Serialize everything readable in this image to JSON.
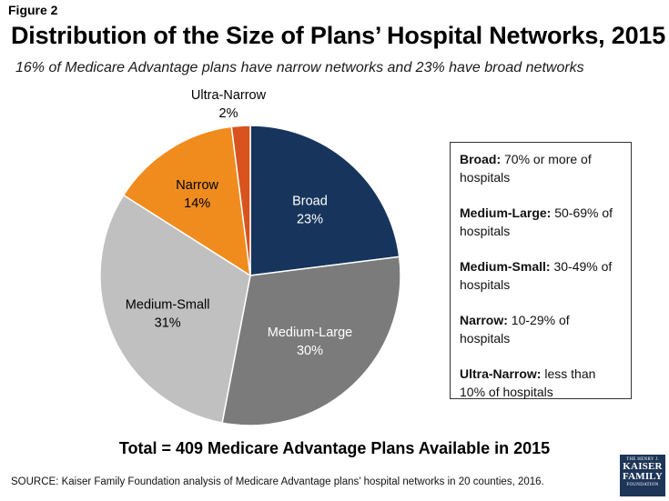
{
  "figure_label": "Figure 2",
  "chart_data": {
    "type": "pie",
    "title": "Distribution of the Size of Plans’ Hospital Networks, 2015",
    "subtitle": "16% of Medicare Advantage plans have narrow networks and 23% have broad networks",
    "categories": [
      "Broad",
      "Medium-Large",
      "Medium-Small",
      "Narrow",
      "Ultra-Narrow"
    ],
    "values": [
      23,
      30,
      31,
      14,
      2
    ],
    "value_labels": [
      "23%",
      "30%",
      "31%",
      "14%",
      "2%"
    ],
    "colors": [
      "#17355c",
      "#7b7b7b",
      "#c0c0c0",
      "#f08c1e",
      "#d9531e"
    ],
    "label_colors": [
      "#ffffff",
      "#ffffff",
      "#000000",
      "#000000",
      "#000000"
    ]
  },
  "legend": [
    {
      "term": "Broad:",
      "desc": "70% or more of hospitals"
    },
    {
      "term": "Medium-Large:",
      "desc": "50-69% of hospitals"
    },
    {
      "term": "Medium-Small:",
      "desc": "30-49% of hospitals"
    },
    {
      "term": "Narrow:",
      "desc": "10-29% of hospitals"
    },
    {
      "term": "Ultra-Narrow:",
      "desc": "less than 10% of hospitals"
    }
  ],
  "total": "Total = 409 Medicare Advantage Plans Available in 2015",
  "source": "SOURCE: Kaiser Family Foundation analysis of Medicare Advantage plans’ hospital networks in 20 counties, 2016.",
  "logo": {
    "line1": "THE HENRY J.",
    "line2": "KAISER",
    "line3": "FAMILY",
    "line4": "FOUNDATION"
  }
}
